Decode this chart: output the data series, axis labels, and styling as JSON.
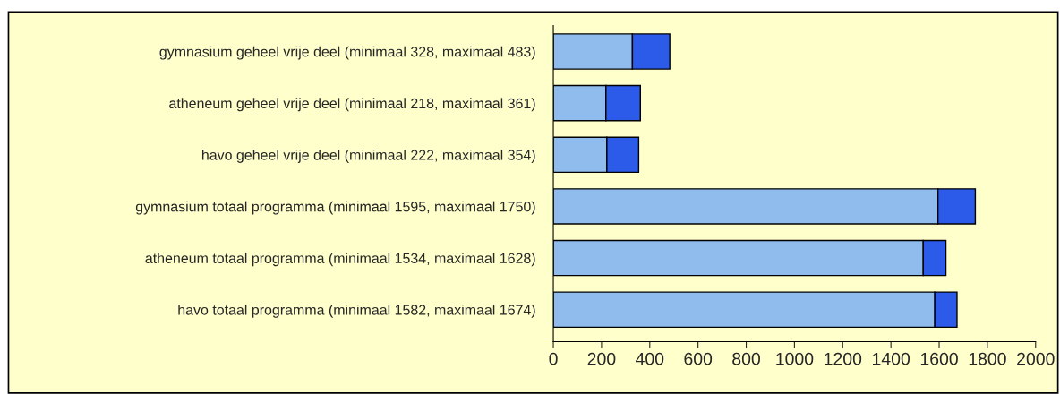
{
  "chart_data": {
    "type": "bar",
    "orientation": "horizontal",
    "stacked": true,
    "categories": [
      "gymnasium geheel vrije deel (minimaal 328, maximaal 483)",
      "atheneum geheel vrije deel (minimaal 218, maximaal 361)",
      "havo geheel vrije deel (minimaal 222, maximaal 354)",
      "gymnasium totaal programma (minimaal 1595, maximaal 1750)",
      "atheneum totaal programma (minimaal 1534, maximaal 1628)",
      "havo totaal programma (minimaal 1582, maximaal 1674)"
    ],
    "series": [
      {
        "color": "#8fbcec",
        "values": [
          328,
          218,
          222,
          1595,
          1534,
          1582
        ]
      },
      {
        "color": "#2b5be8",
        "values": [
          155,
          143,
          132,
          155,
          94,
          92
        ]
      }
    ],
    "xlim": [
      0,
      2000
    ],
    "xticks": [
      0,
      200,
      400,
      600,
      800,
      1000,
      1200,
      1400,
      1600,
      1800,
      2000
    ],
    "grid": false,
    "legend": false
  }
}
